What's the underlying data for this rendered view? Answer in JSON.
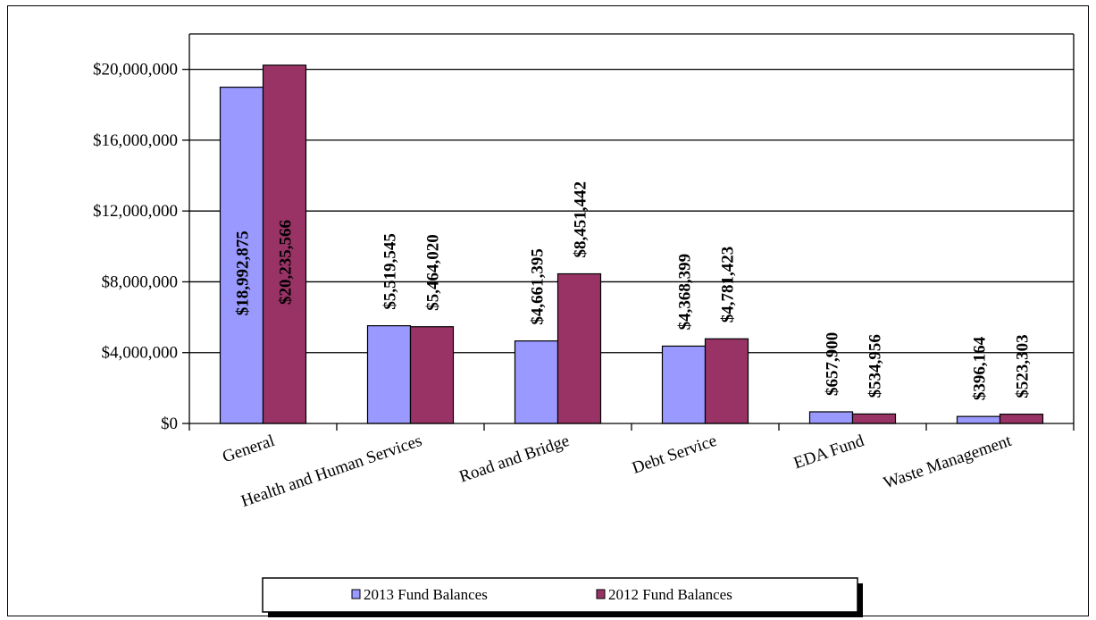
{
  "chart_data": {
    "type": "bar",
    "categories": [
      "General",
      "Health and Human Services",
      "Road and Bridge",
      "Debt Service",
      "EDA Fund",
      "Waste Management"
    ],
    "series": [
      {
        "name": "2013 Fund Balances",
        "color": "#9999ff",
        "values": [
          18992875,
          5519545,
          4661395,
          4368399,
          657900,
          396164
        ],
        "labels": [
          "$18,992,875",
          "$5,519,545",
          "$4,661,395",
          "$4,368,399",
          "$657,900",
          "$396,164"
        ]
      },
      {
        "name": "2012 Fund Balances",
        "color": "#993366",
        "values": [
          20235566,
          5464020,
          8451442,
          4781423,
          534956,
          523303
        ],
        "labels": [
          "$20,235,566",
          "$5,464,020",
          "$8,451,442",
          "$4,781,423",
          "$534,956",
          "$523,303"
        ]
      }
    ],
    "yticks": [
      0,
      4000000,
      8000000,
      12000000,
      16000000,
      20000000
    ],
    "ytick_labels": [
      "$0",
      "$4,000,000",
      "$8,000,000",
      "$12,000,000",
      "$16,000,000",
      "$20,000,000"
    ],
    "ylim": [
      0,
      22000000
    ],
    "grid": true,
    "legend_position": "bottom"
  }
}
